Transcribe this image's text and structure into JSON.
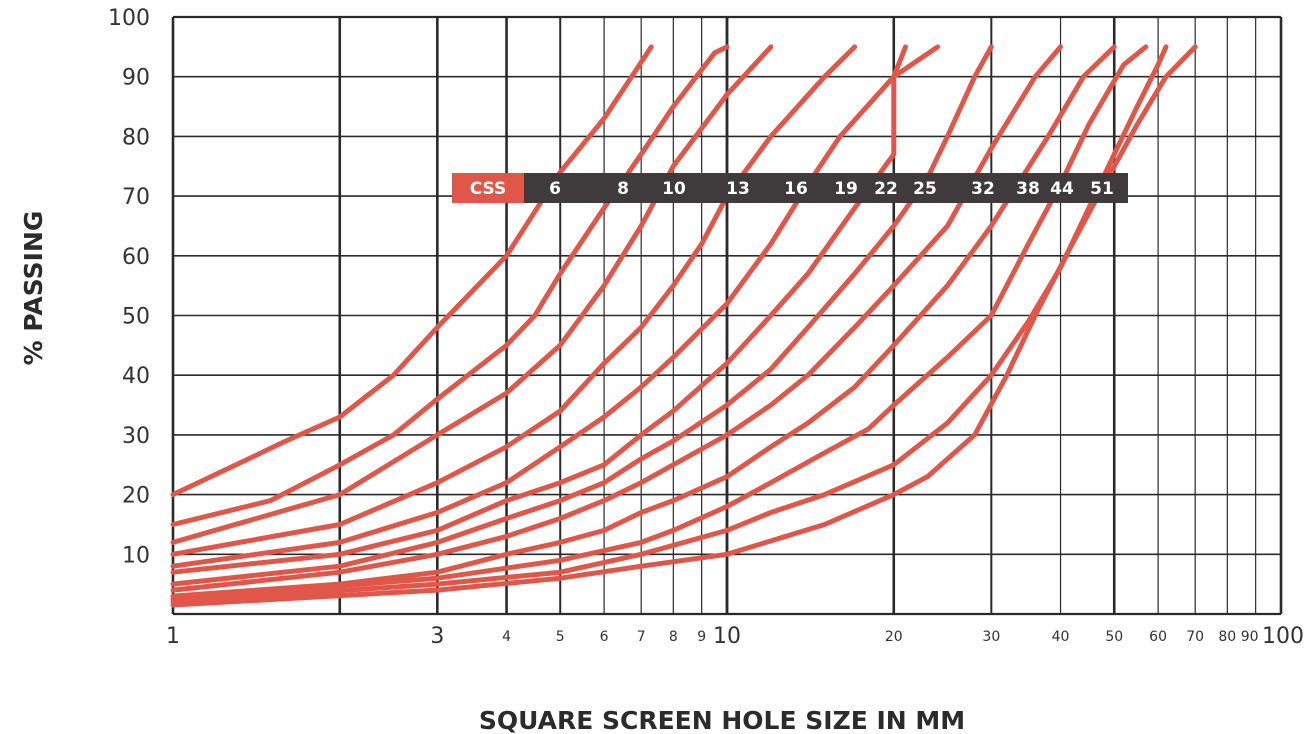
{
  "chart_data": {
    "type": "line",
    "title": "",
    "xlabel": "SQUARE SCREEN HOLE SIZE IN MM",
    "ylabel": "% PASSING",
    "x_scale": "log",
    "xlim": [
      1,
      100
    ],
    "ylim": [
      0,
      100
    ],
    "grid": true,
    "y_ticks": [
      10,
      20,
      30,
      40,
      50,
      60,
      70,
      80,
      90,
      100
    ],
    "x_major_ticks": [
      1,
      3,
      10,
      100
    ],
    "x_minor_ticks": [
      4,
      5,
      6,
      7,
      8,
      9,
      20,
      30,
      40,
      50,
      60,
      70,
      80,
      90
    ],
    "x_tick_labels": [
      "1",
      "3",
      "4",
      "5",
      "6",
      "7",
      "8",
      "9",
      "10",
      "20",
      "30",
      "40",
      "50",
      "60",
      "70",
      "80",
      "90",
      "100"
    ],
    "legend": {
      "header": "CSS",
      "entries": [
        "6",
        "8",
        "10",
        "13",
        "16",
        "19",
        "22",
        "25",
        "32",
        "38",
        "44",
        "51"
      ]
    },
    "colors": {
      "curve": "#e0574a",
      "legend_header_bg": "#e0574a",
      "legend_bg": "#3f3a3b",
      "grid": "#2a2a2a"
    },
    "series": [
      {
        "name": "6",
        "points": [
          [
            1,
            20
          ],
          [
            1.3,
            25
          ],
          [
            1.6,
            29
          ],
          [
            2,
            33
          ],
          [
            2.5,
            40
          ],
          [
            3,
            48
          ],
          [
            4,
            60
          ],
          [
            5,
            74
          ],
          [
            6,
            83
          ],
          [
            7.3,
            95
          ]
        ]
      },
      {
        "name": "8",
        "points": [
          [
            1,
            15
          ],
          [
            1.5,
            19
          ],
          [
            2,
            25
          ],
          [
            2.5,
            30
          ],
          [
            3,
            36
          ],
          [
            4,
            45
          ],
          [
            4.5,
            50
          ],
          [
            5,
            57
          ],
          [
            6,
            68
          ],
          [
            7,
            77
          ],
          [
            8,
            85
          ],
          [
            9.5,
            94
          ],
          [
            10,
            95
          ]
        ]
      },
      {
        "name": "10",
        "points": [
          [
            1,
            12
          ],
          [
            2,
            20
          ],
          [
            3,
            30
          ],
          [
            4,
            37
          ],
          [
            5,
            45
          ],
          [
            6,
            55
          ],
          [
            7,
            65
          ],
          [
            8,
            75
          ],
          [
            10,
            87
          ],
          [
            12,
            95
          ]
        ]
      },
      {
        "name": "13",
        "points": [
          [
            1,
            10
          ],
          [
            2,
            15
          ],
          [
            3,
            22
          ],
          [
            4,
            28
          ],
          [
            5,
            34
          ],
          [
            6,
            42
          ],
          [
            7,
            48
          ],
          [
            8,
            55
          ],
          [
            9,
            62
          ],
          [
            10,
            70
          ],
          [
            12,
            80
          ],
          [
            15,
            90
          ],
          [
            17,
            95
          ]
        ]
      },
      {
        "name": "16",
        "points": [
          [
            1,
            8
          ],
          [
            2,
            12
          ],
          [
            3,
            17
          ],
          [
            4,
            22
          ],
          [
            5,
            28
          ],
          [
            6,
            33
          ],
          [
            7,
            38
          ],
          [
            8,
            43
          ],
          [
            10,
            52
          ],
          [
            12,
            62
          ],
          [
            14,
            72
          ],
          [
            16,
            80
          ],
          [
            20,
            90
          ],
          [
            21,
            95
          ]
        ]
      },
      {
        "name": "19",
        "points": [
          [
            1,
            7
          ],
          [
            2,
            10
          ],
          [
            3,
            14
          ],
          [
            4,
            19
          ],
          [
            5,
            22
          ],
          [
            6,
            25
          ],
          [
            7,
            30
          ],
          [
            8,
            34
          ],
          [
            10,
            42
          ],
          [
            12,
            50
          ],
          [
            14,
            57
          ],
          [
            17,
            68
          ],
          [
            20,
            77
          ],
          [
            20,
            90
          ],
          [
            24,
            95
          ]
        ]
      },
      {
        "name": "22",
        "points": [
          [
            1,
            5
          ],
          [
            2,
            8
          ],
          [
            3,
            12
          ],
          [
            4,
            16
          ],
          [
            5,
            19
          ],
          [
            6,
            22
          ],
          [
            7,
            26
          ],
          [
            8,
            29
          ],
          [
            10,
            35
          ],
          [
            12,
            41
          ],
          [
            14,
            48
          ],
          [
            17,
            57
          ],
          [
            20,
            65
          ],
          [
            23,
            73
          ],
          [
            25,
            80
          ],
          [
            28,
            90
          ],
          [
            30,
            95
          ]
        ]
      },
      {
        "name": "25",
        "points": [
          [
            1,
            4
          ],
          [
            2,
            7
          ],
          [
            3,
            10
          ],
          [
            4,
            13
          ],
          [
            5,
            16
          ],
          [
            6,
            19
          ],
          [
            7,
            22
          ],
          [
            8,
            25
          ],
          [
            10,
            30
          ],
          [
            12,
            35
          ],
          [
            14,
            40
          ],
          [
            17,
            48
          ],
          [
            20,
            55
          ],
          [
            25,
            65
          ],
          [
            30,
            78
          ],
          [
            36,
            90
          ],
          [
            40,
            95
          ]
        ]
      },
      {
        "name": "32",
        "points": [
          [
            1,
            3
          ],
          [
            2,
            5
          ],
          [
            3,
            7
          ],
          [
            4,
            10
          ],
          [
            5,
            12
          ],
          [
            6,
            14
          ],
          [
            7,
            17
          ],
          [
            8,
            19
          ],
          [
            10,
            23
          ],
          [
            12,
            28
          ],
          [
            14,
            32
          ],
          [
            17,
            38
          ],
          [
            20,
            45
          ],
          [
            25,
            55
          ],
          [
            30,
            65
          ],
          [
            38,
            80
          ],
          [
            44,
            90
          ],
          [
            50,
            95
          ]
        ]
      },
      {
        "name": "38",
        "points": [
          [
            1,
            2.5
          ],
          [
            3,
            6
          ],
          [
            5,
            9
          ],
          [
            7,
            12
          ],
          [
            8,
            14
          ],
          [
            10,
            18
          ],
          [
            12,
            22
          ],
          [
            15,
            27
          ],
          [
            18,
            31
          ],
          [
            20,
            35
          ],
          [
            25,
            43
          ],
          [
            30,
            50
          ],
          [
            35,
            62
          ],
          [
            40,
            72
          ],
          [
            45,
            82
          ],
          [
            52,
            92
          ],
          [
            57,
            95
          ]
        ]
      },
      {
        "name": "44",
        "points": [
          [
            1,
            2
          ],
          [
            3,
            5
          ],
          [
            5,
            7
          ],
          [
            7,
            10
          ],
          [
            10,
            14
          ],
          [
            12,
            17
          ],
          [
            15,
            20
          ],
          [
            20,
            25
          ],
          [
            25,
            32
          ],
          [
            30,
            40
          ],
          [
            35,
            49
          ],
          [
            40,
            58
          ],
          [
            45,
            68
          ],
          [
            50,
            77
          ],
          [
            55,
            85
          ],
          [
            60,
            92
          ],
          [
            62,
            95
          ]
        ]
      },
      {
        "name": "51",
        "points": [
          [
            1,
            1.5
          ],
          [
            3,
            4
          ],
          [
            5,
            6
          ],
          [
            7,
            8
          ],
          [
            10,
            10
          ],
          [
            15,
            15
          ],
          [
            20,
            20
          ],
          [
            23,
            23
          ],
          [
            28,
            30
          ],
          [
            32,
            40
          ],
          [
            36,
            50
          ],
          [
            42,
            62
          ],
          [
            48,
            72
          ],
          [
            55,
            82
          ],
          [
            62,
            90
          ],
          [
            70,
            95
          ]
        ]
      }
    ]
  }
}
